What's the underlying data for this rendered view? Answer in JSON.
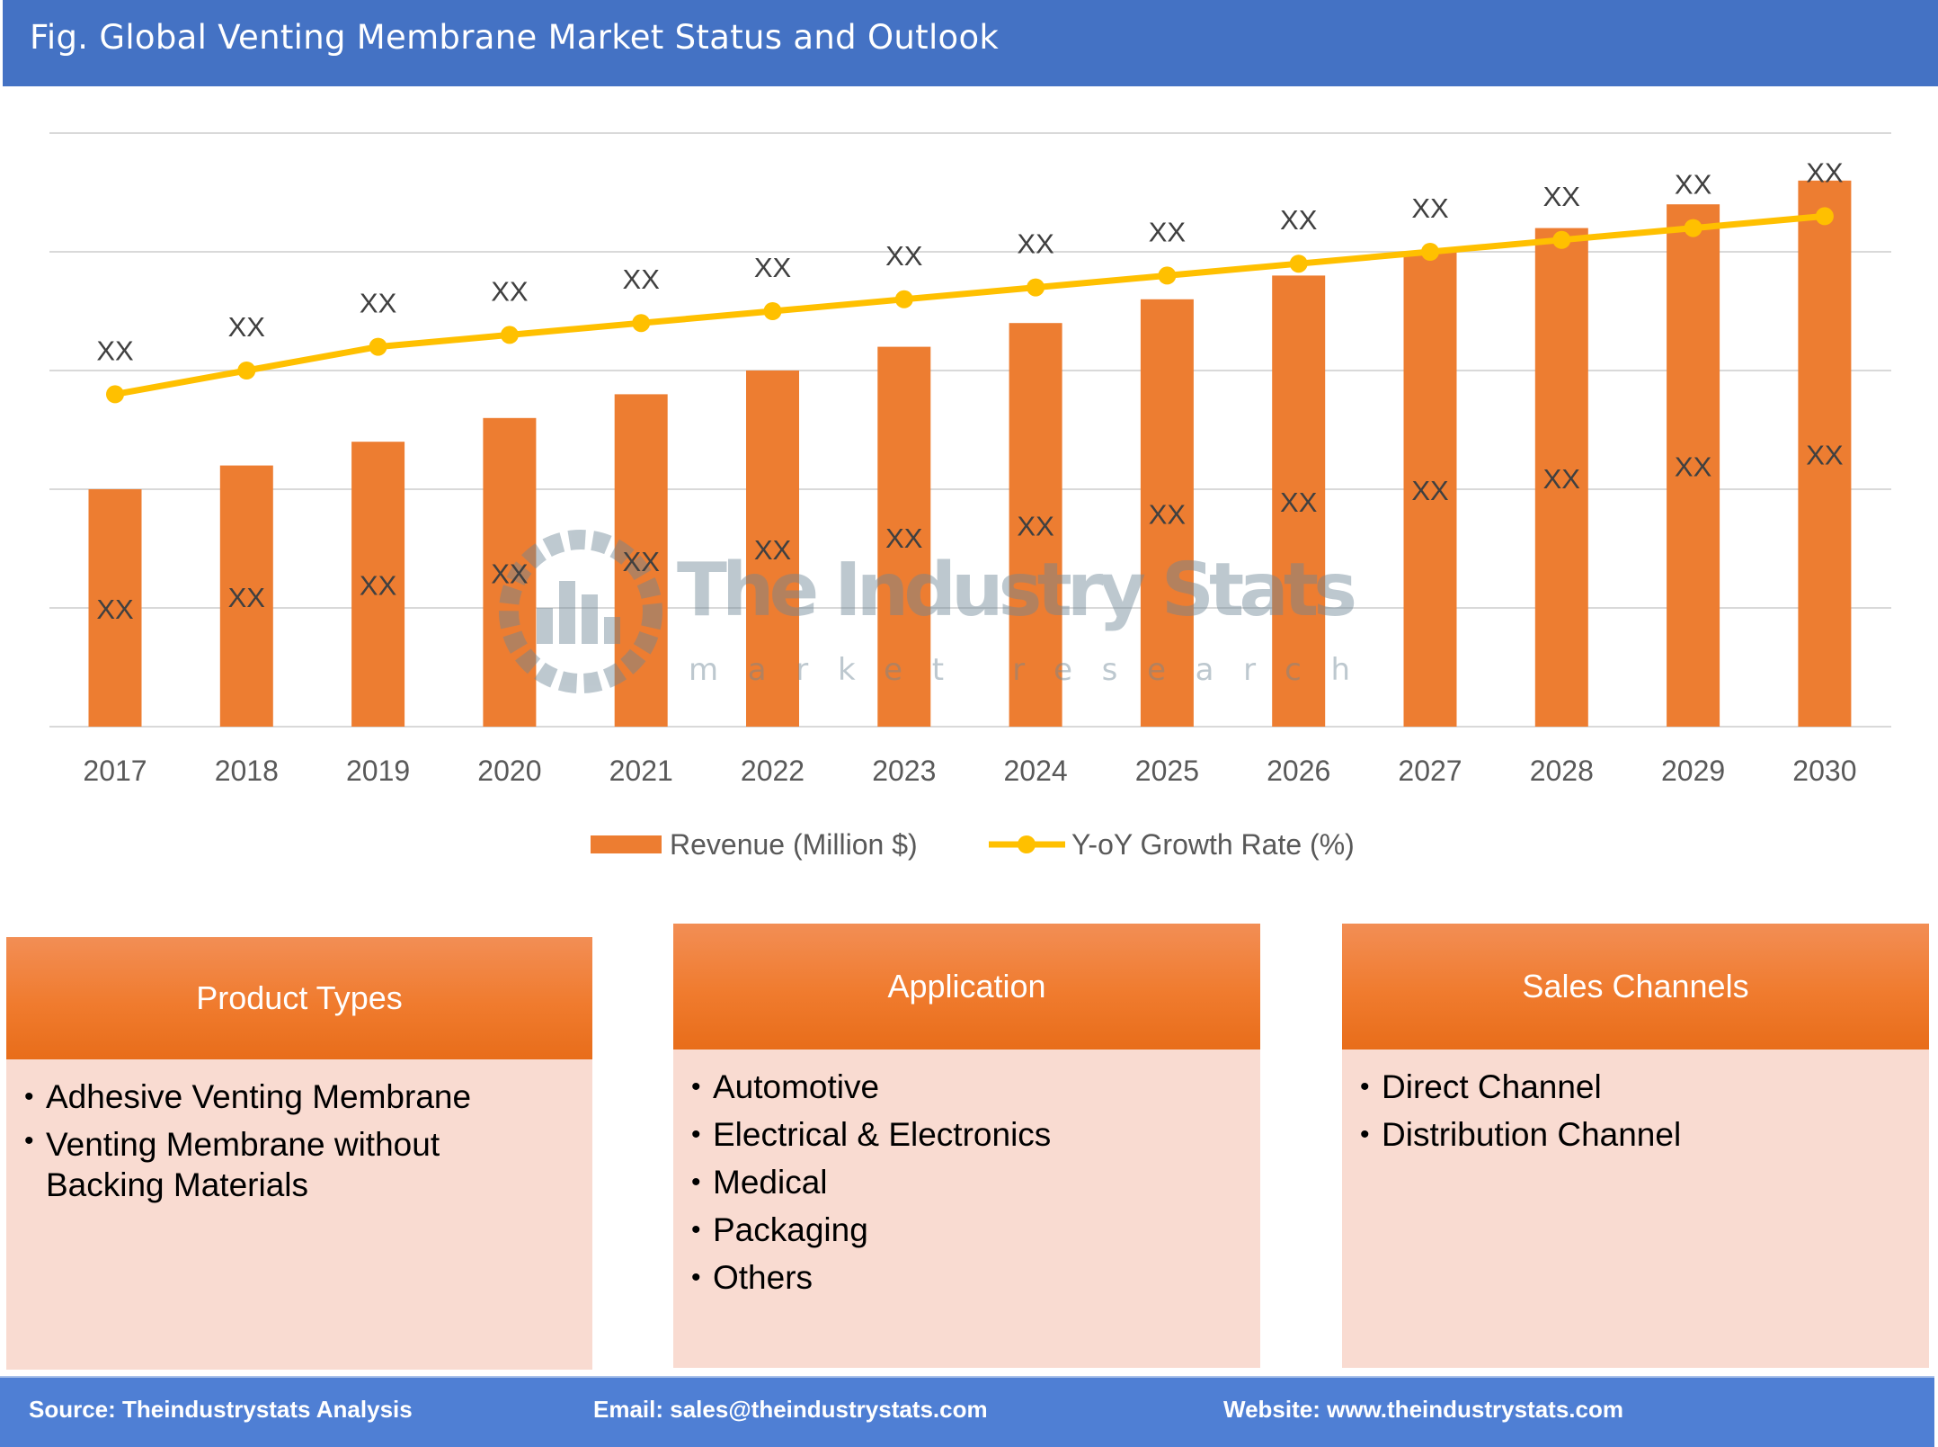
{
  "header": {
    "title": "Fig. Global Venting Membrane Market Status and Outlook"
  },
  "chart_data": {
    "type": "bar+line",
    "categories": [
      "2017",
      "2018",
      "2019",
      "2020",
      "2021",
      "2022",
      "2023",
      "2024",
      "2025",
      "2026",
      "2027",
      "2028",
      "2029",
      "2030"
    ],
    "series": [
      {
        "name": "Revenue (Million $)",
        "type": "bar",
        "color": "#ed7d31",
        "values": [
          2.0,
          2.2,
          2.4,
          2.6,
          2.8,
          3.0,
          3.2,
          3.4,
          3.6,
          3.8,
          4.0,
          4.2,
          4.4,
          4.6
        ],
        "labels": [
          "XX",
          "XX",
          "XX",
          "XX",
          "XX",
          "XX",
          "XX",
          "XX",
          "XX",
          "XX",
          "XX",
          "XX",
          "XX",
          "XX"
        ]
      },
      {
        "name": "Y-oY Growth Rate (%)",
        "type": "line",
        "color": "#ffc000",
        "values": [
          2.8,
          3.0,
          3.2,
          3.3,
          3.4,
          3.5,
          3.6,
          3.7,
          3.8,
          3.9,
          4.0,
          4.1,
          4.2,
          4.3
        ],
        "labels": [
          "XX",
          "XX",
          "XX",
          "XX",
          "XX",
          "XX",
          "XX",
          "XX",
          "XX",
          "XX",
          "XX",
          "XX",
          "XX",
          "XX"
        ]
      }
    ],
    "ylim": [
      0,
      5
    ],
    "grid": true,
    "y_tick_labels_shown": false,
    "legend": "bottom"
  },
  "watermark": {
    "title": "The Industry Stats",
    "subtitle": "market research"
  },
  "boxes": [
    {
      "title": "Product Types",
      "items": [
        "Adhesive Venting Membrane",
        "Venting Membrane without Backing Materials"
      ]
    },
    {
      "title": "Application",
      "items": [
        "Automotive",
        "Electrical & Electronics",
        "Medical",
        "Packaging",
        "Others"
      ]
    },
    {
      "title": "Sales Channels",
      "items": [
        "Direct Channel",
        "Distribution Channel"
      ]
    }
  ],
  "footer": {
    "source": "Source: Theindustrystats Analysis",
    "email": "Email: sales@theindustrystats.com",
    "website": "Website: www.theindustrystats.com"
  }
}
